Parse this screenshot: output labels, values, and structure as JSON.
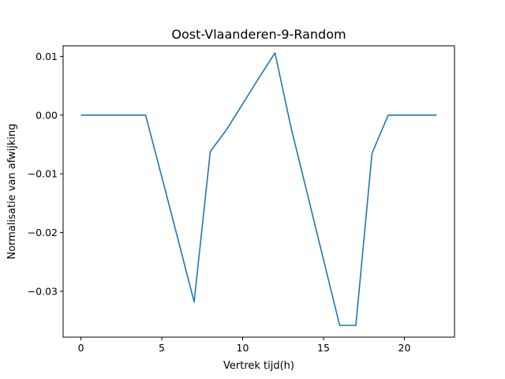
{
  "chart_data": {
    "type": "line",
    "title": "Oost-Vlaanderen-9-Random",
    "xlabel": "Vertrek tijd(h)",
    "ylabel": "Normalisatie van afwijking",
    "xlim": [
      -1.1,
      23.1
    ],
    "ylim": [
      -0.0378,
      0.0118
    ],
    "xticks": [
      0,
      5,
      10,
      15,
      20
    ],
    "yticks": [
      0.01,
      0.0,
      -0.01,
      -0.02,
      -0.03
    ],
    "xtick_labels": [
      "0",
      "5",
      "10",
      "15",
      "20"
    ],
    "ytick_labels": [
      "0.01",
      "0.00",
      "−0.01",
      "−0.02",
      "−0.03"
    ],
    "grid": false,
    "series": [
      {
        "color": "#1f77b4",
        "x": [
          0,
          1,
          2,
          3,
          4,
          5,
          6,
          7,
          8,
          9,
          10,
          11,
          12,
          13,
          14,
          15,
          16,
          17,
          18,
          19,
          20,
          21,
          22
        ],
        "y": [
          0,
          0,
          0,
          0,
          0,
          -0.0105,
          -0.0211,
          -0.0318,
          -0.0062,
          -0.0025,
          0.0019,
          0.0063,
          0.0106,
          -0.0022,
          -0.0134,
          -0.0246,
          -0.0358,
          -0.0358,
          -0.0065,
          0,
          0,
          0,
          0
        ]
      }
    ]
  }
}
